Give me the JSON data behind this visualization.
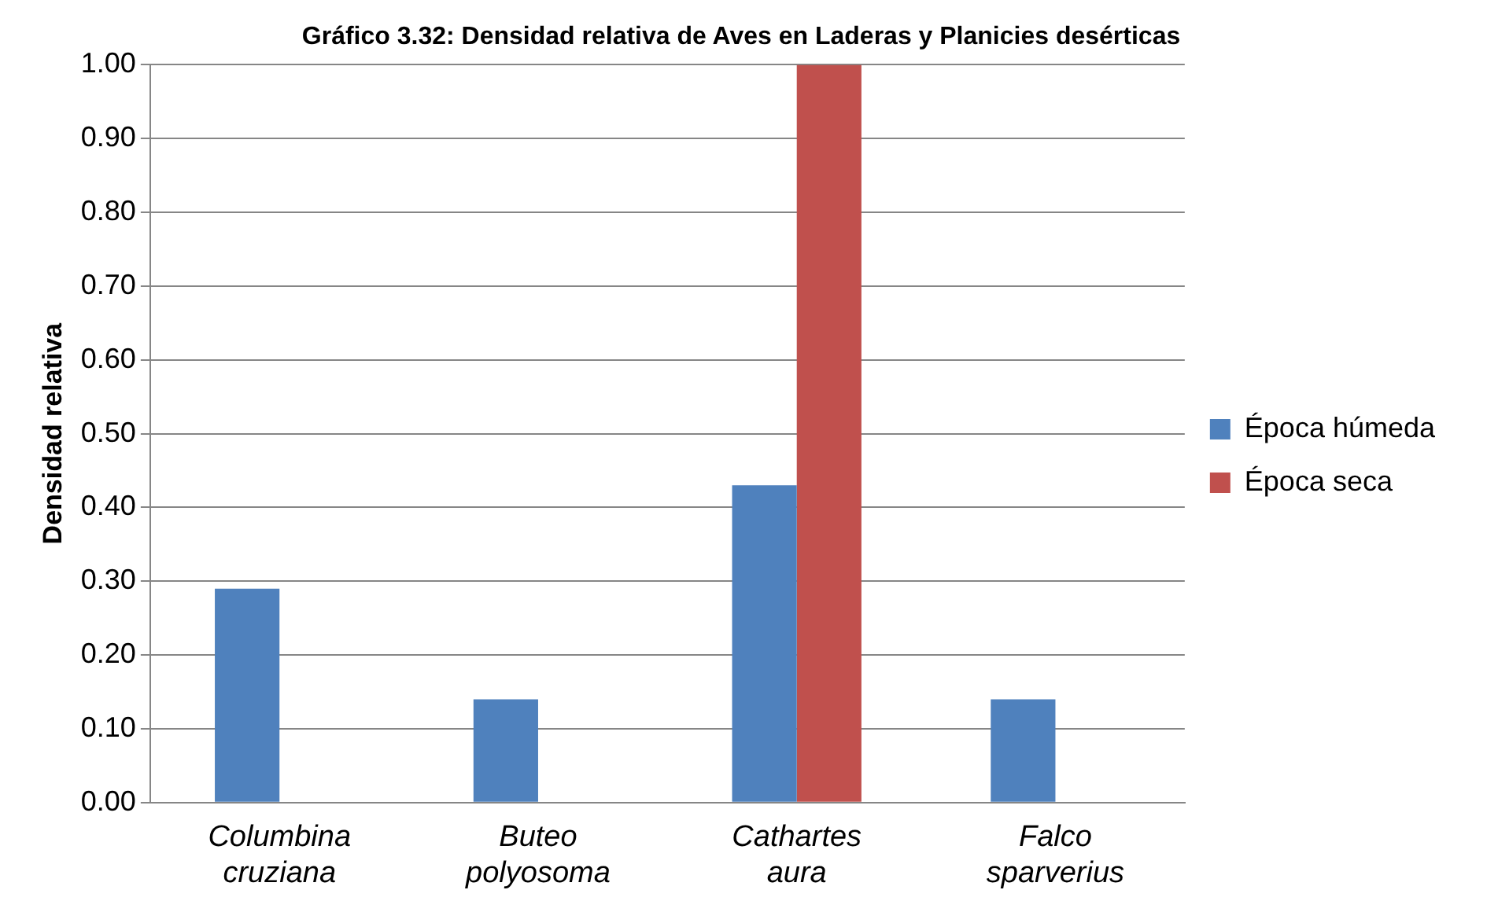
{
  "chart_data": {
    "type": "bar",
    "title": "Gráfico 3.32: Densidad relativa de Aves en Laderas y Planicies desérticas",
    "ylabel": "Densidad relativa",
    "categories": [
      "Columbina cruziana",
      "Buteo polyosoma",
      "Cathartes aura",
      "Falco sparverius"
    ],
    "series": [
      {
        "name": "Época húmeda",
        "color": "#4f81bd",
        "values": [
          0.29,
          0.14,
          0.43,
          0.14
        ]
      },
      {
        "name": "Época seca",
        "color": "#c0504d",
        "values": [
          0,
          0,
          1.0,
          0
        ]
      }
    ],
    "ylim": [
      0,
      1
    ],
    "yticks": [
      {
        "value": 0,
        "label": "0.00"
      },
      {
        "value": 0.1,
        "label": "0.10"
      },
      {
        "value": 0.2,
        "label": "0.20"
      },
      {
        "value": 0.3,
        "label": "0.30"
      },
      {
        "value": 0.4,
        "label": "0.40"
      },
      {
        "value": 0.5,
        "label": "0.50"
      },
      {
        "value": 0.6,
        "label": "0.60"
      },
      {
        "value": 0.7,
        "label": "0.70"
      },
      {
        "value": 0.8,
        "label": "0.80"
      },
      {
        "value": 0.9,
        "label": "0.90"
      },
      {
        "value": 1,
        "label": "1.00"
      }
    ],
    "grid": "y",
    "legend": "right"
  }
}
